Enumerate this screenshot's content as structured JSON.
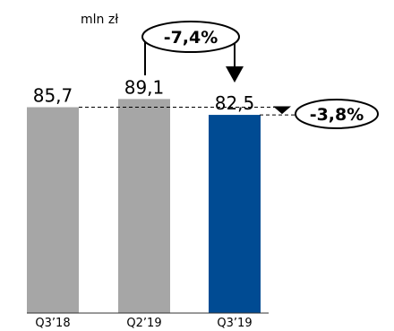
{
  "chart_data": {
    "type": "bar",
    "unit_label": "mln zł",
    "categories": [
      "Q3’18",
      "Q2’19",
      "Q3’19"
    ],
    "values": [
      85.7,
      89.1,
      82.5
    ],
    "value_labels": [
      "85,7",
      "89,1",
      "82,5"
    ],
    "bar_colors": [
      "#a6a6a6",
      "#a6a6a6",
      "#004b93"
    ],
    "ylim": [
      0,
      100
    ],
    "grid": false,
    "callouts": [
      {
        "text": "-7,4%",
        "from": "Q2’19",
        "to": "Q3’19"
      },
      {
        "text": "-3,8%",
        "from": "Q3’18",
        "to": "Q3’19"
      }
    ]
  }
}
